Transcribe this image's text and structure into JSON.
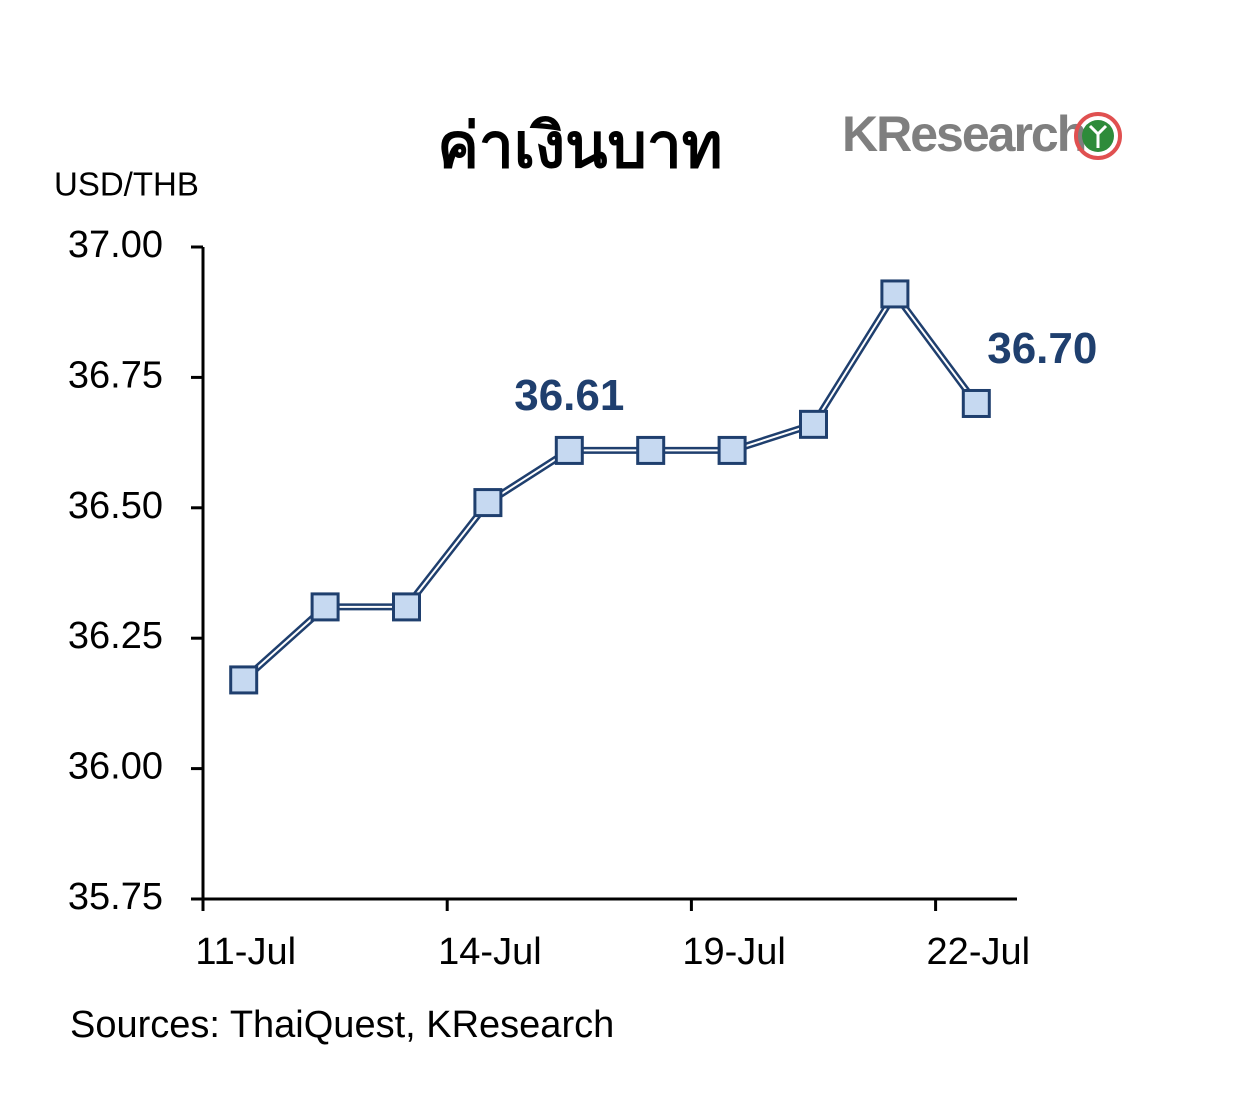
{
  "chart_data": {
    "type": "line",
    "title": "ค่าเงินบาท",
    "logo": "KResearch",
    "y_label": "USD/THB",
    "source": "Sources: ThaiQuest, KResearch",
    "categories": [
      "11-Jul",
      null,
      null,
      "14-Jul",
      null,
      null,
      "19-Jul",
      null,
      null,
      "22-Jul"
    ],
    "series": [
      {
        "color": "#1f3f6e",
        "marker_color": "#c6d9f1",
        "values": [
          36.17,
          36.31,
          36.31,
          36.51,
          36.61,
          36.61,
          36.61,
          36.66,
          36.91,
          36.7
        ],
        "value_labels": [
          null,
          null,
          null,
          null,
          "36.61",
          null,
          null,
          null,
          null,
          "36.70"
        ]
      }
    ],
    "ylim": [
      35.75,
      37.0
    ],
    "yticks": [
      {
        "value": 35.75,
        "label": "35.75"
      },
      {
        "value": 36,
        "label": "36.00"
      },
      36.25,
      {
        "value": 36.5,
        "label": "36.50"
      },
      36.75,
      {
        "value": 37,
        "label": "37.00"
      }
    ],
    "grid": false
  }
}
